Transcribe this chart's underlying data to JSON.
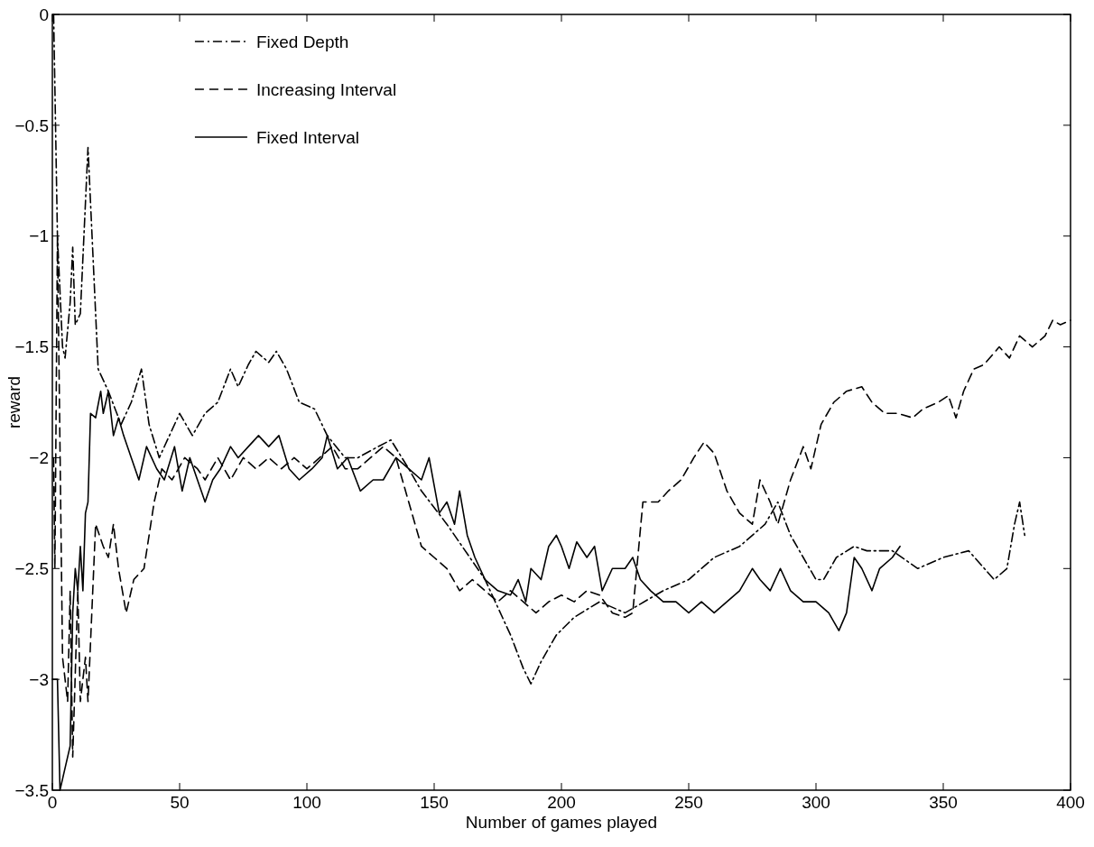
{
  "chart_data": {
    "type": "line",
    "xlabel": "Number of games played",
    "ylabel": "reward",
    "xlim": [
      0,
      400
    ],
    "xticks": [
      0,
      50,
      100,
      150,
      200,
      250,
      300,
      350,
      400
    ],
    "ylim": [
      -3.5,
      0
    ],
    "yticks": [
      -3.5,
      -3,
      -2.5,
      -2,
      -1.5,
      -1,
      -0.5,
      0
    ],
    "legend": "top",
    "grid": false,
    "marker": "none",
    "series": [
      {
        "name": "Fixed Depth",
        "color": "#000000",
        "line_style": "dashdot",
        "x": [
          0.5,
          2,
          4,
          5,
          7,
          8,
          9,
          11,
          14,
          16,
          18,
          22,
          27,
          31,
          35,
          38,
          42,
          46,
          50,
          55,
          60,
          65,
          70,
          73,
          77,
          80,
          85,
          88,
          92,
          97,
          103,
          108,
          115,
          120,
          128,
          133,
          140,
          145,
          155,
          170,
          180,
          185,
          188,
          192,
          198,
          205,
          215,
          225,
          240,
          250,
          260,
          270,
          280,
          285,
          290,
          295,
          300,
          303,
          308,
          315,
          320,
          330,
          340,
          350,
          360,
          370,
          375,
          378,
          380,
          382
        ],
        "values": [
          0,
          -1,
          -1.5,
          -1.55,
          -1.3,
          -1.05,
          -1.4,
          -1.35,
          -0.6,
          -1.1,
          -1.6,
          -1.7,
          -1.85,
          -1.75,
          -1.6,
          -1.85,
          -2,
          -1.9,
          -1.8,
          -1.9,
          -1.8,
          -1.75,
          -1.6,
          -1.68,
          -1.58,
          -1.52,
          -1.57,
          -1.52,
          -1.6,
          -1.75,
          -1.78,
          -1.9,
          -2,
          -2,
          -1.95,
          -1.92,
          -2.05,
          -2.15,
          -2.3,
          -2.55,
          -2.8,
          -2.95,
          -3.02,
          -2.92,
          -2.8,
          -2.72,
          -2.65,
          -2.7,
          -2.6,
          -2.55,
          -2.45,
          -2.4,
          -2.3,
          -2.2,
          -2.35,
          -2.45,
          -2.55,
          -2.55,
          -2.45,
          -2.4,
          -2.42,
          -2.42,
          -2.5,
          -2.45,
          -2.42,
          -2.55,
          -2.5,
          -2.3,
          -2.2,
          -2.35
        ]
      },
      {
        "name": "Increasing Interval",
        "color": "#000000",
        "line_style": "dashed",
        "x": [
          0.5,
          1,
          2,
          4,
          6,
          7,
          8,
          10,
          11,
          13,
          14,
          17,
          20,
          22,
          24,
          26,
          29,
          32,
          36,
          40,
          43,
          47,
          52,
          57,
          60,
          65,
          70,
          75,
          80,
          85,
          90,
          95,
          100,
          105,
          110,
          115,
          120,
          125,
          130,
          135,
          140,
          145,
          150,
          155,
          160,
          165,
          170,
          175,
          180,
          185,
          190,
          195,
          200,
          205,
          210,
          215,
          220,
          225,
          228,
          232,
          238,
          242,
          247,
          252,
          256,
          260,
          265,
          270,
          275,
          278,
          282,
          285,
          290,
          295,
          298,
          302,
          307,
          312,
          318,
          322,
          327,
          332,
          338,
          342,
          348,
          352,
          355,
          358,
          362,
          366,
          372,
          376,
          380,
          385,
          390,
          393,
          396,
          400
        ],
        "values": [
          -2,
          -2.5,
          -1,
          -2.9,
          -3.1,
          -2.6,
          -3.35,
          -2.6,
          -3.1,
          -2.9,
          -3.1,
          -2.3,
          -2.4,
          -2.45,
          -2.3,
          -2.5,
          -2.7,
          -2.55,
          -2.5,
          -2.2,
          -2.05,
          -2.1,
          -2,
          -2.05,
          -2.1,
          -2,
          -2.1,
          -2,
          -2.05,
          -2,
          -2.05,
          -2,
          -2.05,
          -2,
          -1.95,
          -2.05,
          -2.05,
          -2,
          -1.95,
          -2,
          -2.2,
          -2.4,
          -2.45,
          -2.5,
          -2.6,
          -2.55,
          -2.6,
          -2.65,
          -2.6,
          -2.65,
          -2.7,
          -2.65,
          -2.62,
          -2.65,
          -2.6,
          -2.62,
          -2.7,
          -2.72,
          -2.7,
          -2.2,
          -2.2,
          -2.15,
          -2.1,
          -2,
          -1.93,
          -1.98,
          -2.15,
          -2.25,
          -2.3,
          -2.1,
          -2.2,
          -2.3,
          -2.1,
          -1.95,
          -2.05,
          -1.85,
          -1.75,
          -1.7,
          -1.68,
          -1.75,
          -1.8,
          -1.8,
          -1.82,
          -1.78,
          -1.75,
          -1.72,
          -1.82,
          -1.7,
          -1.6,
          -1.58,
          -1.5,
          -1.55,
          -1.45,
          -1.5,
          -1.45,
          -1.38,
          -1.4,
          -1.38
        ]
      },
      {
        "name": "Fixed Interval",
        "color": "#000000",
        "line_style": "solid",
        "x": [
          0,
          2,
          3,
          5,
          7,
          8,
          9,
          10,
          11,
          12,
          13,
          14,
          15,
          17,
          19,
          20,
          22,
          24,
          26,
          28,
          31,
          34,
          37,
          41,
          44,
          48,
          51,
          54,
          57,
          60,
          63,
          66,
          70,
          73,
          77,
          81,
          85,
          89,
          93,
          97,
          102,
          106,
          108,
          112,
          116,
          121,
          126,
          130,
          135,
          140,
          145,
          148,
          152,
          155,
          158,
          160,
          163,
          166,
          170,
          175,
          180,
          183,
          186,
          188,
          192,
          195,
          198,
          200,
          203,
          206,
          210,
          213,
          216,
          220,
          225,
          228,
          231,
          235,
          240,
          245,
          250,
          255,
          260,
          265,
          270,
          275,
          278,
          282,
          286,
          290,
          295,
          300,
          305,
          309,
          312,
          315,
          318,
          322,
          325,
          330,
          333
        ],
        "values": [
          -3,
          -3,
          -3.5,
          -3.4,
          -3.3,
          -2.7,
          -2.5,
          -2.6,
          -2.4,
          -2.6,
          -2.25,
          -2.2,
          -1.8,
          -1.82,
          -1.7,
          -1.8,
          -1.7,
          -1.9,
          -1.82,
          -1.9,
          -2,
          -2.1,
          -1.95,
          -2.05,
          -2.1,
          -1.95,
          -2.15,
          -2,
          -2.1,
          -2.2,
          -2.1,
          -2.05,
          -1.95,
          -2,
          -1.95,
          -1.9,
          -1.95,
          -1.9,
          -2.05,
          -2.1,
          -2.05,
          -2,
          -1.9,
          -2.05,
          -2,
          -2.15,
          -2.1,
          -2.1,
          -2,
          -2.05,
          -2.1,
          -2,
          -2.25,
          -2.2,
          -2.3,
          -2.15,
          -2.35,
          -2.45,
          -2.55,
          -2.6,
          -2.62,
          -2.55,
          -2.65,
          -2.5,
          -2.55,
          -2.4,
          -2.35,
          -2.4,
          -2.5,
          -2.38,
          -2.45,
          -2.4,
          -2.6,
          -2.5,
          -2.5,
          -2.45,
          -2.55,
          -2.6,
          -2.65,
          -2.65,
          -2.7,
          -2.65,
          -2.7,
          -2.65,
          -2.6,
          -2.5,
          -2.55,
          -2.6,
          -2.5,
          -2.6,
          -2.65,
          -2.65,
          -2.7,
          -2.78,
          -2.7,
          -2.45,
          -2.5,
          -2.6,
          -2.5,
          -2.45,
          -2.4
        ]
      }
    ]
  }
}
